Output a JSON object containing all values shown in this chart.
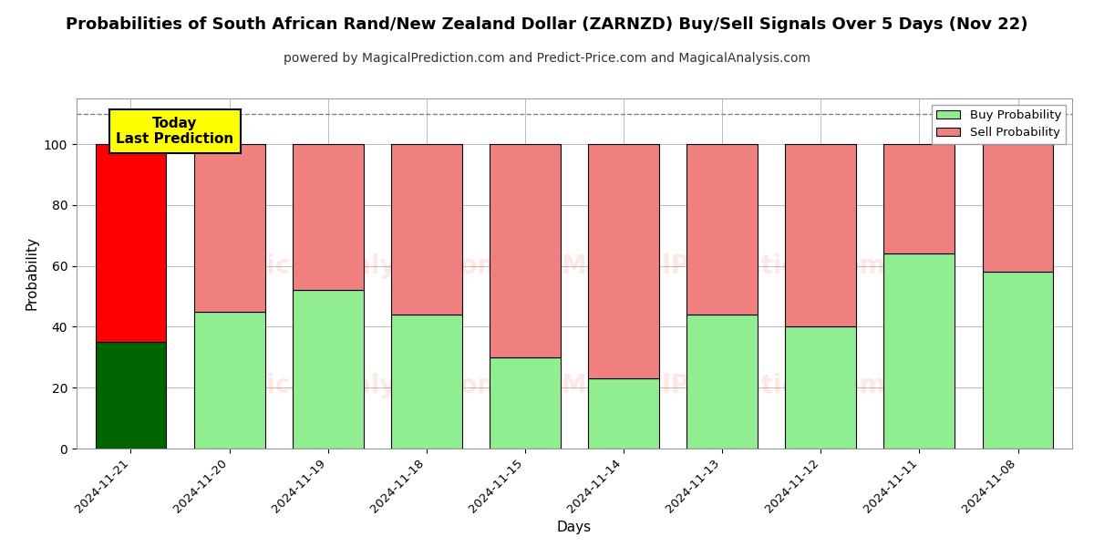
{
  "title": "Probabilities of South African Rand/New Zealand Dollar (ZARNZD) Buy/Sell Signals Over 5 Days (Nov 22)",
  "subtitle": "powered by MagicalPrediction.com and Predict-Price.com and MagicalAnalysis.com",
  "xlabel": "Days",
  "ylabel": "Probability",
  "categories": [
    "2024-11-21",
    "2024-11-20",
    "2024-11-19",
    "2024-11-18",
    "2024-11-15",
    "2024-11-14",
    "2024-11-13",
    "2024-11-12",
    "2024-11-11",
    "2024-11-08"
  ],
  "buy_values": [
    35,
    45,
    52,
    44,
    30,
    23,
    44,
    40,
    64,
    58
  ],
  "sell_values": [
    65,
    55,
    48,
    56,
    70,
    77,
    56,
    60,
    36,
    42
  ],
  "today_bar_buy_color": "#006400",
  "today_bar_sell_color": "#ff0000",
  "other_bar_buy_color": "#90EE90",
  "other_bar_sell_color": "#F08080",
  "today_label_bg": "#ffff00",
  "today_label_text": "Today\nLast Prediction",
  "dashed_line_y": 110,
  "ylim": [
    0,
    115
  ],
  "legend_buy_label": "Buy Probability",
  "legend_sell_label": "Sell Probability",
  "bg_color": "#ffffff",
  "grid_color": "#bbbbbb",
  "title_fontsize": 13,
  "subtitle_fontsize": 10,
  "bar_width": 0.72
}
